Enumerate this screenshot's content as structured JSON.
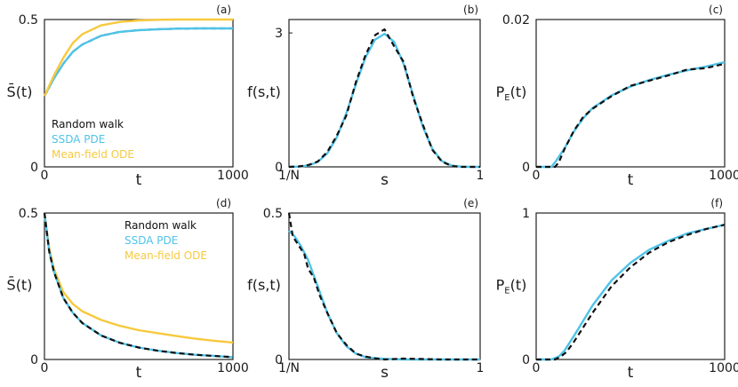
{
  "colors": {
    "random_walk": "#111111",
    "ssda_pde": "#4fc3e8",
    "mean_field_ode": "#f7c93e",
    "axis": "#222222"
  },
  "chart_data": [
    {
      "panel": "(a)",
      "type": "line",
      "xlabel": "t",
      "ylabel": "S̄(t)",
      "xlim": [
        0,
        1000
      ],
      "ylim": [
        0,
        0.5
      ],
      "xticks": [
        {
          "v": 0,
          "label": "0"
        },
        {
          "v": 1000,
          "label": "1000"
        }
      ],
      "yticks": [
        {
          "v": 0,
          "label": "0"
        },
        {
          "v": 0.5,
          "label": "0.5"
        }
      ],
      "legend": {
        "placement": "left",
        "entries": [
          "Random walk",
          "SSDA PDE",
          "Mean-field ODE"
        ]
      },
      "series": [
        {
          "name": "Random walk",
          "style": "dashed",
          "color": "#111111",
          "x": [
            0,
            50,
            100,
            150,
            200,
            300,
            400,
            500,
            600,
            700,
            800,
            900,
            1000
          ],
          "y": [
            0.24,
            0.3,
            0.35,
            0.39,
            0.415,
            0.445,
            0.458,
            0.464,
            0.467,
            0.469,
            0.47,
            0.47,
            0.47
          ]
        },
        {
          "name": "SSDA PDE",
          "style": "solid",
          "color": "#4fc3e8",
          "x": [
            0,
            50,
            100,
            150,
            200,
            300,
            400,
            500,
            600,
            700,
            800,
            900,
            1000
          ],
          "y": [
            0.24,
            0.3,
            0.35,
            0.39,
            0.415,
            0.445,
            0.458,
            0.464,
            0.467,
            0.469,
            0.47,
            0.47,
            0.47
          ]
        },
        {
          "name": "Mean-field ODE",
          "style": "solid",
          "color": "#f7c93e",
          "x": [
            0,
            50,
            100,
            150,
            200,
            300,
            400,
            500,
            600,
            700,
            800,
            900,
            1000
          ],
          "y": [
            0.24,
            0.31,
            0.37,
            0.42,
            0.45,
            0.48,
            0.492,
            0.497,
            0.499,
            0.5,
            0.5,
            0.5,
            0.5
          ]
        }
      ]
    },
    {
      "panel": "(b)",
      "type": "line",
      "xlabel": "s",
      "ylabel": "f(s,t)",
      "xlim": [
        0,
        1
      ],
      "ylim": [
        0,
        3.3
      ],
      "xticks": [
        {
          "v": 0,
          "label": "1/N"
        },
        {
          "v": 1,
          "label": "1"
        }
      ],
      "yticks": [
        {
          "v": 0,
          "label": "0"
        },
        {
          "v": 3,
          "label": "3"
        }
      ],
      "series": [
        {
          "name": "SSDA PDE",
          "style": "solid",
          "color": "#4fc3e8",
          "x": [
            0,
            0.05,
            0.1,
            0.15,
            0.2,
            0.25,
            0.3,
            0.35,
            0.4,
            0.45,
            0.5,
            0.55,
            0.6,
            0.65,
            0.7,
            0.75,
            0.8,
            0.85,
            0.9,
            0.95,
            1
          ],
          "y": [
            0,
            0.005,
            0.03,
            0.11,
            0.3,
            0.66,
            1.2,
            1.85,
            2.45,
            2.85,
            2.98,
            2.8,
            2.3,
            1.6,
            0.9,
            0.4,
            0.13,
            0.03,
            0.005,
            0,
            0
          ]
        },
        {
          "name": "Random walk",
          "style": "dashed",
          "color": "#111111",
          "x": [
            0,
            0.05,
            0.1,
            0.15,
            0.2,
            0.25,
            0.3,
            0.35,
            0.4,
            0.45,
            0.5,
            0.55,
            0.6,
            0.65,
            0.7,
            0.75,
            0.8,
            0.85,
            0.9,
            0.95,
            1
          ],
          "y": [
            0,
            0.01,
            0.04,
            0.12,
            0.33,
            0.7,
            1.15,
            1.9,
            2.5,
            2.95,
            3.08,
            2.7,
            2.35,
            1.55,
            0.95,
            0.38,
            0.12,
            0.02,
            0,
            0,
            0
          ]
        }
      ]
    },
    {
      "panel": "(c)",
      "type": "line",
      "xlabel": "t",
      "ylabel": "P_E(t)",
      "xlim": [
        0,
        1000
      ],
      "ylim": [
        0,
        0.02
      ],
      "xticks": [
        {
          "v": 0,
          "label": "0"
        },
        {
          "v": 1000,
          "label": "1000"
        }
      ],
      "yticks": [
        {
          "v": 0,
          "label": "0"
        },
        {
          "v": 0.02,
          "label": "0.02"
        }
      ],
      "series": [
        {
          "name": "SSDA PDE",
          "style": "solid",
          "color": "#4fc3e8",
          "x": [
            0,
            80,
            100,
            150,
            200,
            250,
            300,
            400,
            500,
            600,
            700,
            800,
            900,
            1000
          ],
          "y": [
            0,
            0,
            0.0006,
            0.0025,
            0.0048,
            0.0066,
            0.008,
            0.0097,
            0.0109,
            0.0118,
            0.0125,
            0.0131,
            0.0136,
            0.0142
          ]
        },
        {
          "name": "Random walk",
          "style": "dashed",
          "color": "#111111",
          "x": [
            0,
            100,
            120,
            150,
            200,
            250,
            300,
            400,
            500,
            600,
            700,
            800,
            900,
            1000
          ],
          "y": [
            0,
            0,
            0.0006,
            0.0024,
            0.0049,
            0.0068,
            0.0079,
            0.0096,
            0.011,
            0.0117,
            0.0124,
            0.0132,
            0.0134,
            0.014
          ]
        }
      ]
    },
    {
      "panel": "(d)",
      "type": "line",
      "xlabel": "t",
      "ylabel": "S̄(t)",
      "xlim": [
        0,
        1000
      ],
      "ylim": [
        0,
        0.5
      ],
      "xticks": [
        {
          "v": 0,
          "label": "0"
        },
        {
          "v": 1000,
          "label": "1000"
        }
      ],
      "yticks": [
        {
          "v": 0,
          "label": "0"
        },
        {
          "v": 0.5,
          "label": "0.5"
        }
      ],
      "legend": {
        "placement": "top-right",
        "entries": [
          "Random walk",
          "SSDA PDE",
          "Mean-field ODE"
        ]
      },
      "series": [
        {
          "name": "Mean-field ODE",
          "style": "solid",
          "color": "#f7c93e",
          "x": [
            0,
            25,
            50,
            100,
            150,
            200,
            300,
            400,
            500,
            600,
            700,
            800,
            900,
            1000
          ],
          "y": [
            0.5,
            0.38,
            0.31,
            0.23,
            0.19,
            0.165,
            0.135,
            0.115,
            0.1,
            0.09,
            0.08,
            0.071,
            0.064,
            0.058
          ]
        },
        {
          "name": "SSDA PDE",
          "style": "solid",
          "color": "#4fc3e8",
          "x": [
            0,
            25,
            50,
            100,
            150,
            200,
            300,
            400,
            500,
            600,
            700,
            800,
            900,
            1000
          ],
          "y": [
            0.5,
            0.37,
            0.3,
            0.21,
            0.16,
            0.125,
            0.082,
            0.057,
            0.041,
            0.03,
            0.022,
            0.016,
            0.012,
            0.008
          ]
        },
        {
          "name": "Random walk",
          "style": "dashed",
          "color": "#111111",
          "x": [
            0,
            25,
            50,
            100,
            150,
            200,
            300,
            400,
            500,
            600,
            700,
            800,
            900,
            1000
          ],
          "y": [
            0.5,
            0.37,
            0.3,
            0.21,
            0.16,
            0.125,
            0.082,
            0.057,
            0.041,
            0.03,
            0.022,
            0.016,
            0.012,
            0.008
          ]
        }
      ]
    },
    {
      "panel": "(e)",
      "type": "line",
      "xlabel": "s",
      "ylabel": "f(s,t)",
      "xlim": [
        0,
        1
      ],
      "ylim": [
        0,
        0.5
      ],
      "xticks": [
        {
          "v": 0,
          "label": "1/N"
        },
        {
          "v": 1,
          "label": "1"
        }
      ],
      "yticks": [
        {
          "v": 0,
          "label": "0"
        },
        {
          "v": 0.5,
          "label": "0.5"
        }
      ],
      "series": [
        {
          "name": "SSDA PDE",
          "style": "solid",
          "color": "#4fc3e8",
          "x": [
            0,
            0.03,
            0.06,
            0.1,
            0.15,
            0.2,
            0.25,
            0.3,
            0.35,
            0.4,
            0.5,
            0.6,
            0.8,
            1
          ],
          "y": [
            0.44,
            0.42,
            0.39,
            0.34,
            0.25,
            0.16,
            0.09,
            0.045,
            0.02,
            0.008,
            0.002,
            0,
            0,
            0
          ]
        },
        {
          "name": "Random walk",
          "style": "dashed",
          "color": "#111111",
          "x": [
            0,
            0.02,
            0.04,
            0.06,
            0.08,
            0.1,
            0.13,
            0.16,
            0.2,
            0.25,
            0.3,
            0.35,
            0.4,
            0.45,
            0.5,
            0.6,
            0.8,
            1
          ],
          "y": [
            0.5,
            0.42,
            0.4,
            0.38,
            0.36,
            0.31,
            0.28,
            0.22,
            0.16,
            0.09,
            0.05,
            0.02,
            0.01,
            0.004,
            0,
            0.003,
            0,
            0
          ]
        }
      ]
    },
    {
      "panel": "(f)",
      "type": "line",
      "xlabel": "t",
      "ylabel": "P_E(t)",
      "xlim": [
        0,
        1000
      ],
      "ylim": [
        0,
        1
      ],
      "xticks": [
        {
          "v": 0,
          "label": "0"
        },
        {
          "v": 1000,
          "label": "1000"
        }
      ],
      "yticks": [
        {
          "v": 0,
          "label": "0"
        },
        {
          "v": 1,
          "label": "1"
        }
      ],
      "series": [
        {
          "name": "SSDA PDE",
          "style": "solid",
          "color": "#4fc3e8",
          "x": [
            0,
            80,
            120,
            150,
            200,
            300,
            400,
            500,
            600,
            700,
            800,
            900,
            1000
          ],
          "y": [
            0,
            0,
            0.02,
            0.06,
            0.16,
            0.37,
            0.54,
            0.66,
            0.75,
            0.81,
            0.86,
            0.89,
            0.92
          ]
        },
        {
          "name": "Random walk",
          "style": "dashed",
          "color": "#111111",
          "x": [
            0,
            100,
            130,
            160,
            200,
            300,
            400,
            500,
            600,
            700,
            800,
            900,
            1000
          ],
          "y": [
            0,
            0,
            0.02,
            0.05,
            0.12,
            0.32,
            0.5,
            0.63,
            0.73,
            0.8,
            0.85,
            0.89,
            0.92
          ]
        }
      ]
    }
  ]
}
